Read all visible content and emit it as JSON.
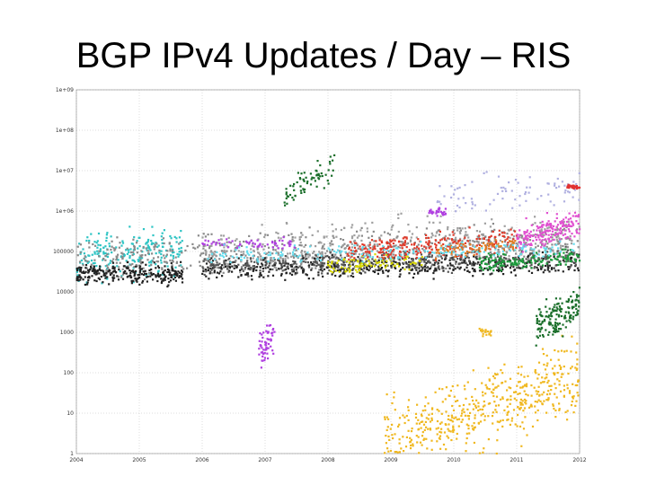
{
  "slide": {
    "title": "BGP IPv4 Updates / Day – RIS"
  },
  "chart_data": {
    "type": "scatter",
    "title": "BGP IPv4 Updates / Day – RIS",
    "xlabel": "",
    "ylabel": "",
    "yscale": "log",
    "ylim": [
      1,
      1000000000
    ],
    "xlim": [
      2004,
      2012
    ],
    "x_ticks": [
      "2004",
      "2005",
      "2006",
      "2007",
      "2008",
      "2009",
      "2010",
      "2011",
      "2012"
    ],
    "y_ticks": [
      "1",
      "10",
      "100",
      "1000",
      "10000",
      "100000",
      "1e+06",
      "1e+07",
      "1e+08",
      "1e+09"
    ],
    "grid": true,
    "legend": "none",
    "series": [
      {
        "color": "#2ec4c4",
        "segments": [
          {
            "x": [
              2004.0,
              2005.7
            ],
            "y": [
              70000,
              110000
            ],
            "spread": 0.35,
            "n": 220
          }
        ]
      },
      {
        "color": "#8a8a8a",
        "segments": [
          {
            "x": [
              2004.0,
              2012.0
            ],
            "y": [
              60000,
              160000
            ],
            "spread": 0.3,
            "n": 650
          }
        ]
      },
      {
        "color": "#a0a0a0",
        "segments": [
          {
            "x": [
              2006.0,
              2012.0
            ],
            "y": [
              100000,
              250000
            ],
            "spread": 0.35,
            "n": 380
          }
        ]
      },
      {
        "color": "#222222",
        "segments": [
          {
            "x": [
              2004.0,
              2005.7
            ],
            "y": [
              28000,
              28000
            ],
            "spread": 0.15,
            "n": 260
          },
          {
            "x": [
              2006.0,
              2012.0
            ],
            "y": [
              35000,
              50000
            ],
            "spread": 0.15,
            "n": 480
          }
        ]
      },
      {
        "color": "#555555",
        "segments": [
          {
            "x": [
              2006.0,
              2012.0
            ],
            "y": [
              45000,
              70000
            ],
            "spread": 0.15,
            "n": 380
          }
        ]
      },
      {
        "color": "#b040e0",
        "segments": [
          {
            "x": [
              2006.0,
              2007.5
            ],
            "y": [
              150000,
              160000
            ],
            "spread": 0.08,
            "n": 60
          },
          {
            "x": [
              2006.9,
              2007.15
            ],
            "y": [
              300,
              900
            ],
            "spread": 0.3,
            "n": 60
          },
          {
            "x": [
              2009.6,
              2009.9
            ],
            "y": [
              1000000,
              1000000
            ],
            "spread": 0.06,
            "n": 30
          }
        ]
      },
      {
        "color": "#d8d800",
        "segments": [
          {
            "x": [
              2008.0,
              2009.5
            ],
            "y": [
              40000,
              60000
            ],
            "spread": 0.12,
            "n": 90
          }
        ]
      },
      {
        "color": "#e03a2a",
        "segments": [
          {
            "x": [
              2008.3,
              2011.0
            ],
            "y": [
              100000,
              200000
            ],
            "spread": 0.18,
            "n": 240
          }
        ]
      },
      {
        "color": "#f0b820",
        "segments": [
          {
            "x": [
              2008.9,
              2012.0
            ],
            "y": [
              2,
              80
            ],
            "spread": 0.55,
            "n": 520
          },
          {
            "x": [
              2010.4,
              2010.6
            ],
            "y": [
              1000,
              1000
            ],
            "spread": 0.06,
            "n": 20
          }
        ]
      },
      {
        "color": "#1a9a3a",
        "segments": [
          {
            "x": [
              2010.4,
              2012.0
            ],
            "y": [
              50000,
              70000
            ],
            "spread": 0.12,
            "n": 140
          }
        ]
      },
      {
        "color": "#1a6e2a",
        "segments": [
          {
            "x": [
              2011.3,
              2012.0
            ],
            "y": [
              1500,
              5000
            ],
            "spread": 0.3,
            "n": 160
          },
          {
            "x": [
              2007.3,
              2008.1
            ],
            "y": [
              2000000,
              15000000
            ],
            "spread": 0.25,
            "n": 70
          }
        ]
      },
      {
        "color": "#e050d0",
        "segments": [
          {
            "x": [
              2011.0,
              2012.0
            ],
            "y": [
              200000,
              500000
            ],
            "spread": 0.2,
            "n": 180
          }
        ]
      },
      {
        "color": "#b0b0e0",
        "segments": [
          {
            "x": [
              2009.7,
              2012.0
            ],
            "y": [
              2000000,
              5000000
            ],
            "spread": 0.3,
            "n": 80
          }
        ]
      },
      {
        "color": "#e03030",
        "segments": [
          {
            "x": [
              2011.8,
              2012.0
            ],
            "y": [
              4000000,
              4000000
            ],
            "spread": 0.03,
            "n": 35
          }
        ]
      },
      {
        "color": "#e07a20",
        "segments": [
          {
            "x": [
              2009.7,
              2011.0
            ],
            "y": [
              100000,
              160000
            ],
            "spread": 0.1,
            "n": 80
          }
        ]
      },
      {
        "color": "#66ddee",
        "segments": [
          {
            "x": [
              2006.0,
              2012.0
            ],
            "y": [
              80000,
              120000
            ],
            "spread": 0.12,
            "n": 180
          }
        ]
      }
    ]
  }
}
